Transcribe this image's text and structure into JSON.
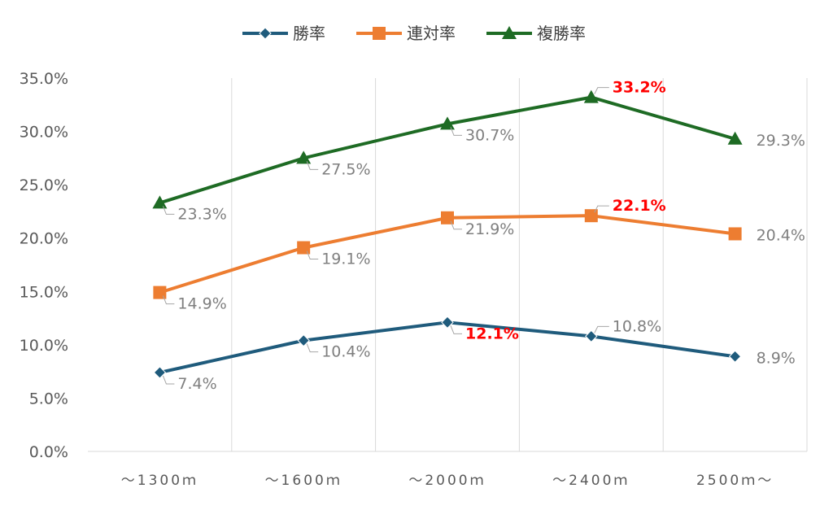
{
  "chart_data": {
    "type": "line",
    "categories": [
      "～1300ｍ",
      "～1600ｍ",
      "～2000ｍ",
      "～2400ｍ",
      "2500ｍ～"
    ],
    "ylim": [
      0,
      35
    ],
    "yticks": [
      "0.0%",
      "5.0%",
      "10.0%",
      "15.0%",
      "20.0%",
      "25.0%",
      "30.0%",
      "35.0%"
    ],
    "grid": "vertical",
    "legend": "top-center",
    "series": [
      {
        "name": "勝率",
        "color": "#1f5b7c",
        "marker": "diamond",
        "values": [
          7.4,
          10.4,
          12.1,
          10.8,
          8.9
        ],
        "labels": [
          "7.4%",
          "10.4%",
          "12.1%",
          "10.8%",
          "8.9%"
        ],
        "highlight_index": 2
      },
      {
        "name": "連対率",
        "color": "#ed7d31",
        "marker": "square",
        "values": [
          14.9,
          19.1,
          21.9,
          22.1,
          20.4
        ],
        "labels": [
          "14.9%",
          "19.1%",
          "21.9%",
          "22.1%",
          "20.4%"
        ],
        "highlight_index": 3
      },
      {
        "name": "複勝率",
        "color": "#1e6b24",
        "marker": "triangle",
        "values": [
          23.3,
          27.5,
          30.7,
          33.2,
          29.3
        ],
        "labels": [
          "23.3%",
          "27.5%",
          "30.7%",
          "33.2%",
          "29.3%"
        ],
        "highlight_index": 3
      }
    ]
  }
}
